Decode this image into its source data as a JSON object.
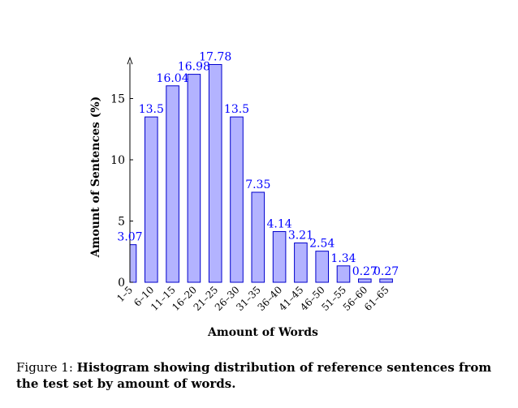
{
  "chart_data": {
    "type": "bar",
    "categories": [
      "1–5",
      "6–10",
      "11–15",
      "16–20",
      "21–25",
      "26–30",
      "31–35",
      "36–40",
      "41–45",
      "46–50",
      "51–55",
      "56–60",
      "61–65"
    ],
    "values": [
      3.07,
      13.5,
      16.04,
      16.98,
      17.78,
      13.5,
      7.35,
      4.14,
      3.21,
      2.54,
      1.34,
      0.27,
      0.27
    ],
    "data_labels": [
      "3.07",
      "13.5",
      "16.04",
      "16.98",
      "17.78",
      "13.5",
      "7.35",
      "4.14",
      "3.21",
      "2.54",
      "1.34",
      "0.27",
      "0.27"
    ],
    "xlabel": "Amount of Words",
    "ylabel": "Amount of Sentences (%)",
    "ylim": [
      0,
      18
    ],
    "yticks": [
      0,
      5,
      10,
      15
    ],
    "grid": false,
    "bar_fill": "#b3b3ff",
    "bar_stroke": "#0000cc",
    "label_color": "#0000ff"
  },
  "caption": {
    "label": "Figure 1: ",
    "text": "Histogram showing distribution of reference sentences from the test set by amount of words."
  }
}
